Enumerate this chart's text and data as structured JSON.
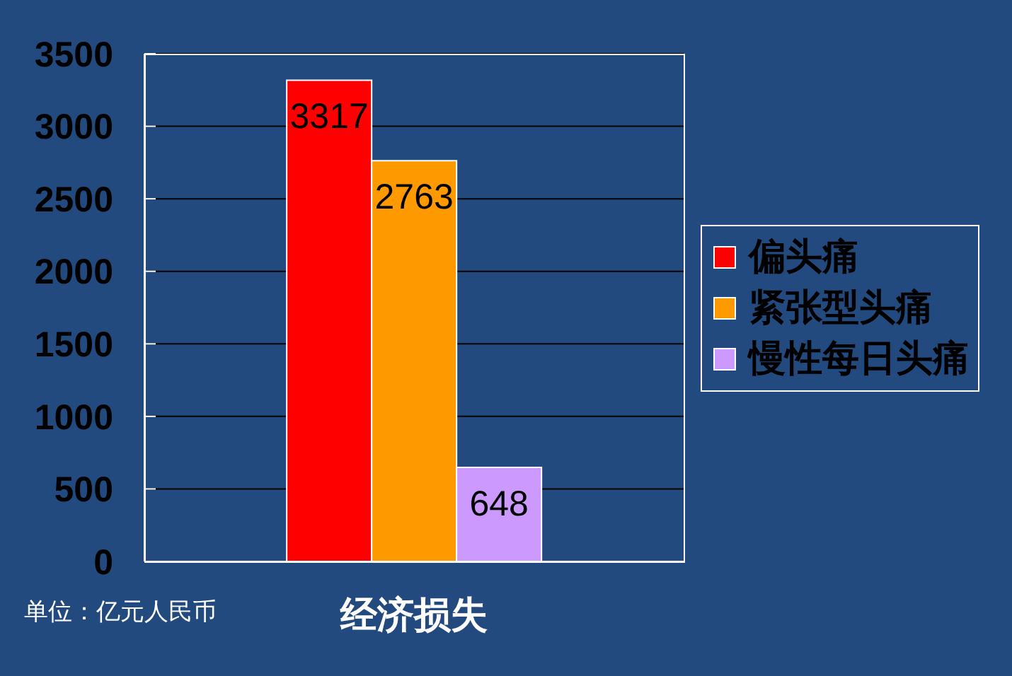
{
  "chart_data": {
    "type": "bar",
    "categories": [
      "经济损失"
    ],
    "series": [
      {
        "name": "偏头痛",
        "color": "#ff0000",
        "values": [
          3317
        ]
      },
      {
        "name": "紧张型头痛",
        "color": "#ff9900",
        "values": [
          2763
        ]
      },
      {
        "name": "慢性每日头痛",
        "color": "#cc99ff",
        "values": [
          648
        ]
      }
    ],
    "ylim": [
      0,
      3500
    ],
    "yticks": [
      0,
      500,
      1000,
      1500,
      2000,
      2500,
      3000,
      3500
    ],
    "grid": "y",
    "legend": "right",
    "data_labels": true,
    "annotations": [
      "单位：亿元人民币"
    ]
  }
}
